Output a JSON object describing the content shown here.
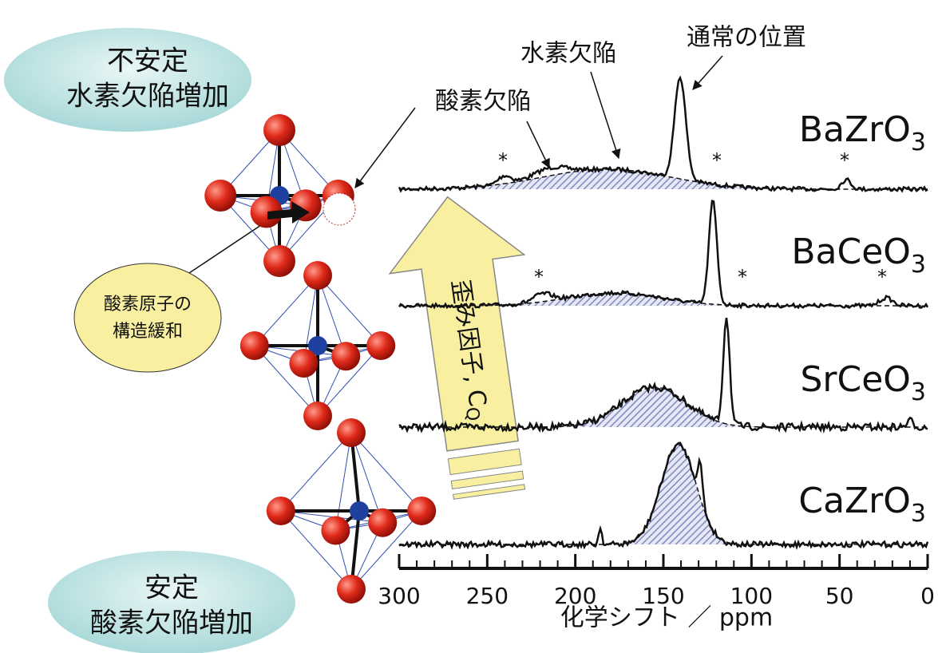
{
  "labels": {
    "top_bubble": [
      "不安定",
      "水素欠陥増加"
    ],
    "bottom_bubble": [
      "安定",
      "酸素欠陥増加"
    ],
    "relax_bubble": [
      "酸素原子の",
      "構造緩和"
    ],
    "normal_position": "通常の位置",
    "hydrogen_defect": "水素欠陥",
    "oxygen_defect": "酸素欠陥",
    "strain_label": "歪み因子, C",
    "strain_sub": "Q",
    "asterisk": "*"
  },
  "compounds": [
    {
      "name": "BaZrO",
      "sub": "3"
    },
    {
      "name": "BaCeO",
      "sub": "3"
    },
    {
      "name": "SrCeO",
      "sub": "3"
    },
    {
      "name": "CaZrO",
      "sub": "3"
    }
  ],
  "axis": {
    "label": "化学シフト ／ ppm",
    "xlim": [
      300,
      0
    ],
    "xticks": [
      300,
      250,
      200,
      150,
      100,
      50,
      0
    ]
  }
}
